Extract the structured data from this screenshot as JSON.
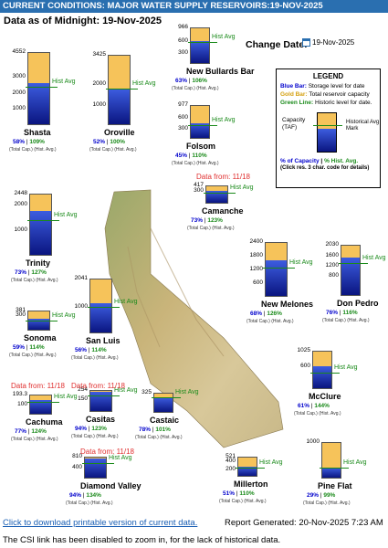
{
  "header": {
    "title": "CURRENT CONDITIONS: MAJOR WATER SUPPLY RESERVOIRS:19-NOV-2025"
  },
  "as_of": "Data as of Midnight: 19-Nov-2025",
  "change_date": {
    "label": "Change Date:",
    "value": "19-Nov-2025",
    "icon": "calendar-icon"
  },
  "legend": {
    "title": "LEGEND",
    "blue": {
      "key": "Blue Bar:",
      "text": "Storage level for date"
    },
    "gold": {
      "key": "Gold Bar:",
      "text": "Total reservoir capacity"
    },
    "green": {
      "key": "Green Line:",
      "text": "Historic level for date."
    },
    "capacity_label": "Capacity (TAF)",
    "historical_label": "Historical Avg Mark",
    "pct_capacity": "% of Capacity",
    "pct_hist": "% Hist. Avg.",
    "note": "(Click res. 3 char. code for details)"
  },
  "common": {
    "hist_avg": "Hist Avg",
    "total_cap": "(Total Cap.)",
    "hist_avg_short": "(Hist. Avg.)"
  },
  "reservoirs": [
    {
      "name": "Shasta",
      "capacity": 4552,
      "axis_mid": 3000,
      "axis_low": 2000,
      "axis_b": 1000,
      "storage_frac": 0.58,
      "hist_frac": 0.53,
      "pct_cap": "58%",
      "pct_hist": "109%"
    },
    {
      "name": "Oroville",
      "capacity": 3425,
      "axis_mid": 2000,
      "axis_low": 1000,
      "storage_frac": 0.52,
      "hist_frac": 0.52,
      "pct_cap": "52%",
      "pct_hist": "100%"
    },
    {
      "name": "New Bullards Bar",
      "capacity": 966,
      "axis_mid": 600,
      "axis_low": 300,
      "storage_frac": 0.63,
      "hist_frac": 0.59,
      "pct_cap": "63%",
      "pct_hist": "106%"
    },
    {
      "name": "Folsom",
      "capacity": 977,
      "axis_mid": 600,
      "axis_low": 300,
      "storage_frac": 0.45,
      "hist_frac": 0.41,
      "pct_cap": "45%",
      "pct_hist": "110%"
    },
    {
      "name": "Trinity",
      "capacity": 2448,
      "axis_mid": 2000,
      "axis_low": 1000,
      "storage_frac": 0.73,
      "hist_frac": 0.58,
      "pct_cap": "73%",
      "pct_hist": "127%"
    },
    {
      "name": "Camanche",
      "capacity": 417,
      "axis_mid": 300,
      "storage_frac": 0.73,
      "hist_frac": 0.59,
      "pct_cap": "73%",
      "pct_hist": "123%"
    },
    {
      "name": "New Melones",
      "capacity": 2400,
      "axis_mid": 1800,
      "axis_low": 1200,
      "axis_b": 600,
      "storage_frac": 0.68,
      "hist_frac": 0.54,
      "pct_cap": "68%",
      "pct_hist": "126%"
    },
    {
      "name": "Don Pedro",
      "capacity": 2030,
      "axis_mid": 1600,
      "axis_low": 1200,
      "axis_b": 800,
      "storage_frac": 0.76,
      "hist_frac": 0.65,
      "pct_cap": "76%",
      "pct_hist": "116%"
    },
    {
      "name": "Sonoma",
      "capacity": 381,
      "axis_mid": 300,
      "storage_frac": 0.59,
      "hist_frac": 0.52,
      "pct_cap": "59%",
      "pct_hist": "114%"
    },
    {
      "name": "San Luis",
      "capacity": 2041,
      "axis_mid": 1000,
      "storage_frac": 0.56,
      "hist_frac": 0.49,
      "pct_cap": "56%",
      "pct_hist": "114%"
    },
    {
      "name": "McClure",
      "capacity": 1025,
      "axis_mid": 600,
      "storage_frac": 0.61,
      "hist_frac": 0.42,
      "pct_cap": "61%",
      "pct_hist": "144%"
    },
    {
      "name": "Cachuma",
      "capacity": 193.3,
      "axis_mid": 100,
      "storage_frac": 0.77,
      "hist_frac": 0.62,
      "pct_cap": "77%",
      "pct_hist": "124%",
      "date_from": "Data from: 11/18"
    },
    {
      "name": "Casitas",
      "capacity": 254.0,
      "axis_mid": 150,
      "storage_frac": 0.94,
      "hist_frac": 0.76,
      "pct_cap": "94%",
      "pct_hist": "123%",
      "date_from": "Data from: 11/18"
    },
    {
      "name": "Castaic",
      "capacity": 325,
      "storage_frac": 0.78,
      "hist_frac": 0.77,
      "pct_cap": "78%",
      "pct_hist": "101%"
    },
    {
      "name": "Diamond Valley",
      "capacity": 810,
      "axis_mid": 400,
      "storage_frac": 0.94,
      "hist_frac": 0.7,
      "pct_cap": "94%",
      "pct_hist": "134%",
      "date_from": "Data from: 11/18"
    },
    {
      "name": "Millerton",
      "capacity": 521,
      "axis_mid": 400,
      "axis_low": 200,
      "storage_frac": 0.51,
      "hist_frac": 0.46,
      "pct_cap": "51%",
      "pct_hist": "110%"
    },
    {
      "name": "Pine Flat",
      "capacity": 1000,
      "storage_frac": 0.29,
      "hist_frac": 0.29,
      "pct_cap": "29%",
      "pct_hist": "99%"
    }
  ],
  "camanche_date_from": "Data from: 11/18",
  "footer": {
    "download_link": "Click to download printable version of current data.",
    "report": "Report Generated: 20-Nov-2025 7:23 AM",
    "csi_note": "The CSI link has been disabled to zoom in, for the lack of historical data."
  }
}
